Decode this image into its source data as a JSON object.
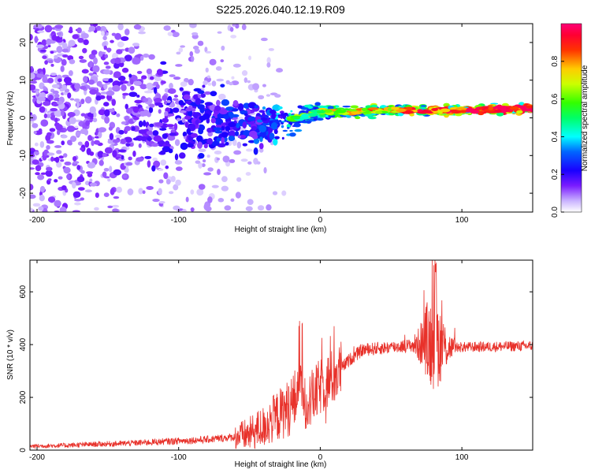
{
  "chart_data": [
    {
      "type": "heatmap",
      "title": "S225.2026.040.12.19.R09",
      "xlabel": "Height of straight line (km)",
      "ylabel": "Frequency (Hz)",
      "xlim": [
        -205,
        150
      ],
      "ylim": [
        -25,
        25
      ],
      "xticks": [
        -200,
        -100,
        0,
        100
      ],
      "yticks": [
        -20,
        -10,
        0,
        10,
        20
      ],
      "colorbar": {
        "label": "Normalized spectral amplitude",
        "range": [
          0,
          1
        ],
        "ticks": [
          "0.0",
          "0.2",
          "0.4",
          "0.6",
          "0.8"
        ],
        "colors": [
          "#ffffff",
          "#b48cff",
          "#6600ff",
          "#0000ff",
          "#00ffff",
          "#00ff00",
          "#ffff00",
          "#ff8800",
          "#ff0000",
          "#ff0088"
        ]
      },
      "description_points": [
        {
          "x": -180,
          "y_center": 5,
          "spread": 20,
          "amplitude": 0.12
        },
        {
          "x": -100,
          "y_center": 0,
          "spread": 8,
          "amplitude": 0.18
        },
        {
          "x": -40,
          "y_center": -2,
          "spread": 4,
          "amplitude": 0.28
        },
        {
          "x": 0,
          "y_center": 1.5,
          "spread": 1.5,
          "amplitude": 0.45
        },
        {
          "x": 50,
          "y_center": 2,
          "spread": 1,
          "amplitude": 0.6
        },
        {
          "x": 100,
          "y_center": 2,
          "spread": 1,
          "amplitude": 0.7
        },
        {
          "x": 150,
          "y_center": 2.5,
          "spread": 1,
          "amplitude": 0.85
        }
      ]
    },
    {
      "type": "line",
      "xlabel": "Height of straight line (km)",
      "ylabel": "SNR (10 * v/v)",
      "xlim": [
        -205,
        150
      ],
      "ylim": [
        0,
        720
      ],
      "xticks": [
        -200,
        -100,
        0,
        100
      ],
      "yticks": [
        0,
        200,
        400,
        600
      ],
      "series": [
        {
          "name": "SNR",
          "color": "#e8312a",
          "x": [
            -205,
            -180,
            -160,
            -140,
            -120,
            -100,
            -80,
            -60,
            -50,
            -40,
            -30,
            -20,
            -15,
            -10,
            -5,
            0,
            10,
            20,
            30,
            40,
            50,
            60,
            70,
            75,
            80,
            85,
            90,
            100,
            120,
            150
          ],
          "y": [
            15,
            18,
            22,
            25,
            30,
            35,
            40,
            50,
            60,
            90,
            130,
            170,
            230,
            180,
            200,
            240,
            280,
            340,
            380,
            385,
            390,
            395,
            400,
            420,
            410,
            400,
            390,
            390,
            392,
            395
          ]
        }
      ]
    }
  ]
}
